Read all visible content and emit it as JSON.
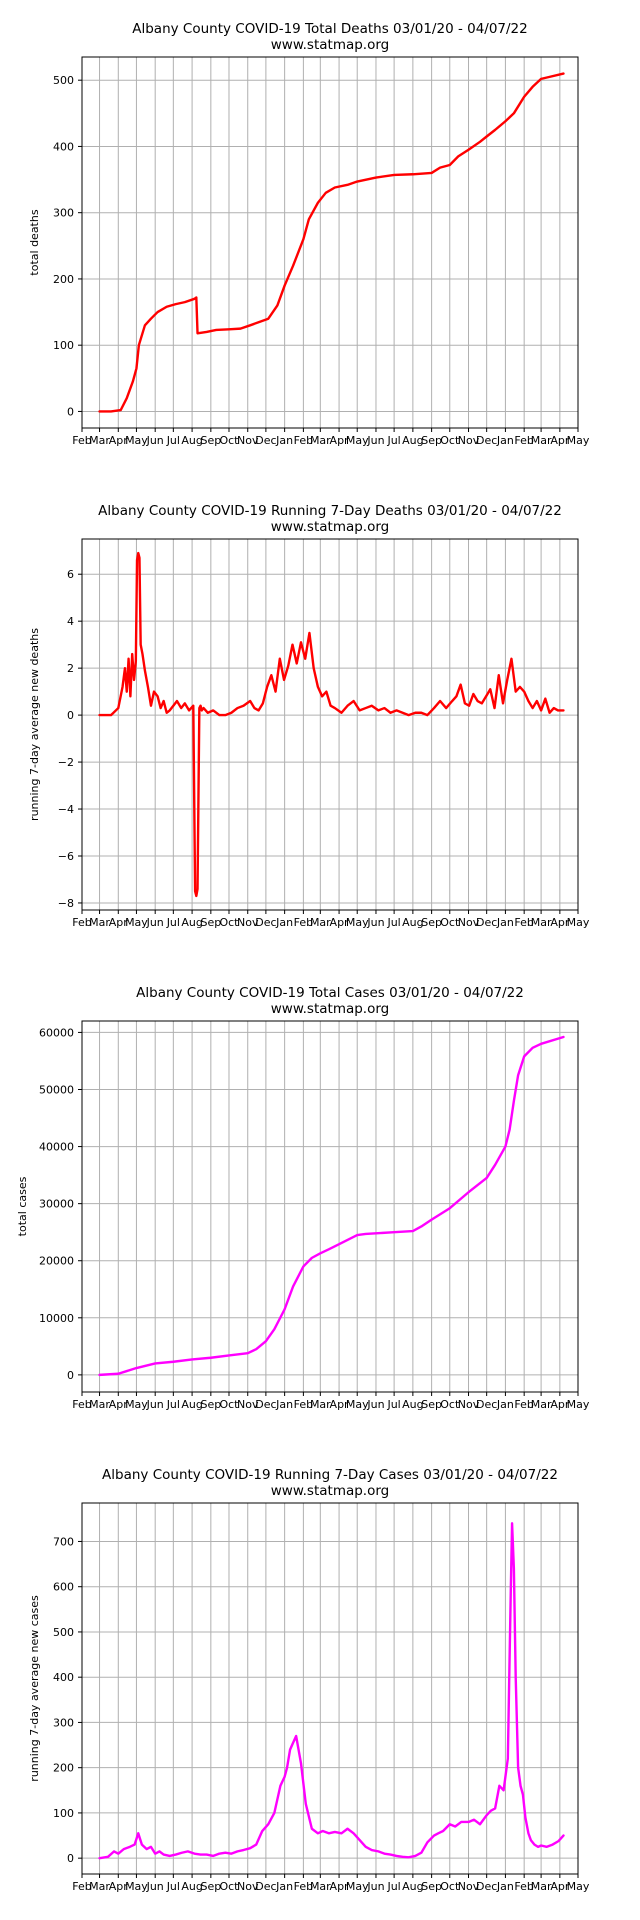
{
  "colors": {
    "deaths": "#ff0000",
    "cases": "#ff00ff",
    "grid": "#b0b0b0",
    "axis": "#000000"
  },
  "x_ticks": [
    "Feb",
    "Mar",
    "Apr",
    "May",
    "Jun",
    "Jul",
    "Aug",
    "Sep",
    "Oct",
    "Nov",
    "Dec",
    "Jan",
    "Feb",
    "Mar",
    "Apr",
    "May",
    "Jun",
    "Jul",
    "Aug",
    "Sep",
    "Oct",
    "Nov",
    "Dec",
    "Jan",
    "Feb",
    "Mar",
    "Apr",
    "May"
  ],
  "chart_data": [
    {
      "type": "line",
      "title": "Albany County COVID-19 Total Deaths 03/01/20 - 04/07/22",
      "subtitle": "www.statmap.org",
      "ylabel": "total deaths",
      "color": "deaths",
      "xlim": [
        "2020-02-01",
        "2022-05-01"
      ],
      "ylim": [
        -25,
        535
      ],
      "yticks": [
        0,
        100,
        200,
        300,
        400,
        500
      ],
      "ytick_labels": [
        "0",
        "100",
        "200",
        "300",
        "400",
        "500"
      ],
      "grid": true,
      "x": [
        "2020-03-01",
        "2020-03-20",
        "2020-04-05",
        "2020-04-15",
        "2020-04-25",
        "2020-05-01",
        "2020-05-05",
        "2020-05-15",
        "2020-05-25",
        "2020-06-05",
        "2020-06-20",
        "2020-07-05",
        "2020-07-20",
        "2020-08-05",
        "2020-08-08",
        "2020-08-10",
        "2020-08-25",
        "2020-09-10",
        "2020-10-01",
        "2020-10-20",
        "2020-11-05",
        "2020-11-20",
        "2020-12-05",
        "2020-12-20",
        "2021-01-01",
        "2021-01-15",
        "2021-02-01",
        "2021-02-10",
        "2021-02-25",
        "2021-03-10",
        "2021-03-25",
        "2021-04-15",
        "2021-05-01",
        "2021-06-01",
        "2021-07-01",
        "2021-08-01",
        "2021-09-01",
        "2021-09-15",
        "2021-10-01",
        "2021-10-15",
        "2021-11-01",
        "2021-11-20",
        "2021-12-01",
        "2021-12-15",
        "2022-01-01",
        "2022-01-15",
        "2022-02-01",
        "2022-02-15",
        "2022-03-01",
        "2022-03-15",
        "2022-04-07"
      ],
      "y": [
        0,
        0,
        2,
        20,
        45,
        65,
        100,
        130,
        140,
        150,
        158,
        162,
        165,
        170,
        172,
        118,
        120,
        123,
        124,
        125,
        130,
        135,
        140,
        160,
        190,
        220,
        260,
        290,
        315,
        330,
        338,
        342,
        347,
        353,
        357,
        358,
        360,
        368,
        372,
        385,
        395,
        407,
        415,
        425,
        438,
        450,
        475,
        490,
        502,
        505,
        510
      ]
    },
    {
      "type": "line",
      "title": "Albany County COVID-19 Running 7-Day Deaths 03/01/20 - 04/07/22",
      "subtitle": "www.statmap.org",
      "ylabel": "running 7-day average new deaths",
      "color": "deaths",
      "xlim": [
        "2020-02-01",
        "2022-05-01"
      ],
      "ylim": [
        -8.3,
        7.5
      ],
      "yticks": [
        -8,
        -6,
        -4,
        -2,
        0,
        2,
        4,
        6
      ],
      "ytick_labels": [
        "−8",
        "−6",
        "−4",
        "−2",
        "0",
        "2",
        "4",
        "6"
      ],
      "grid": true,
      "x": [
        "2020-03-01",
        "2020-03-20",
        "2020-04-01",
        "2020-04-08",
        "2020-04-12",
        "2020-04-15",
        "2020-04-18",
        "2020-04-21",
        "2020-04-24",
        "2020-04-27",
        "2020-04-30",
        "2020-05-02",
        "2020-05-04",
        "2020-05-06",
        "2020-05-08",
        "2020-05-11",
        "2020-05-15",
        "2020-05-20",
        "2020-05-25",
        "2020-05-30",
        "2020-06-05",
        "2020-06-10",
        "2020-06-15",
        "2020-06-20",
        "2020-06-25",
        "2020-07-01",
        "2020-07-07",
        "2020-07-14",
        "2020-07-20",
        "2020-07-27",
        "2020-08-03",
        "2020-08-06",
        "2020-08-08",
        "2020-08-10",
        "2020-08-13",
        "2020-08-15",
        "2020-08-17",
        "2020-08-20",
        "2020-08-27",
        "2020-09-05",
        "2020-09-15",
        "2020-09-25",
        "2020-10-05",
        "2020-10-15",
        "2020-10-25",
        "2020-11-05",
        "2020-11-12",
        "2020-11-19",
        "2020-11-26",
        "2020-12-03",
        "2020-12-10",
        "2020-12-17",
        "2020-12-24",
        "2020-12-31",
        "2021-01-07",
        "2021-01-14",
        "2021-01-21",
        "2021-01-28",
        "2021-02-04",
        "2021-02-11",
        "2021-02-18",
        "2021-02-25",
        "2021-03-04",
        "2021-03-11",
        "2021-03-18",
        "2021-03-25",
        "2021-04-05",
        "2021-04-15",
        "2021-04-25",
        "2021-05-05",
        "2021-05-15",
        "2021-05-25",
        "2021-06-05",
        "2021-06-15",
        "2021-06-25",
        "2021-07-05",
        "2021-07-15",
        "2021-07-25",
        "2021-08-05",
        "2021-08-15",
        "2021-08-25",
        "2021-09-05",
        "2021-09-15",
        "2021-09-25",
        "2021-10-05",
        "2021-10-12",
        "2021-10-19",
        "2021-10-26",
        "2021-11-02",
        "2021-11-09",
        "2021-11-16",
        "2021-11-23",
        "2021-11-30",
        "2021-12-07",
        "2021-12-14",
        "2021-12-21",
        "2021-12-28",
        "2022-01-04",
        "2022-01-11",
        "2022-01-18",
        "2022-01-25",
        "2022-02-01",
        "2022-02-08",
        "2022-02-15",
        "2022-02-22",
        "2022-03-01",
        "2022-03-08",
        "2022-03-15",
        "2022-03-22",
        "2022-03-29",
        "2022-04-07"
      ],
      "y": [
        0,
        0,
        0.3,
        1.2,
        2.0,
        1.0,
        2.4,
        0.8,
        2.6,
        1.5,
        2.3,
        6.6,
        6.9,
        6.7,
        3.0,
        2.6,
        1.9,
        1.2,
        0.4,
        1.0,
        0.8,
        0.3,
        0.6,
        0.1,
        0.2,
        0.4,
        0.6,
        0.3,
        0.5,
        0.2,
        0.4,
        -7.5,
        -7.7,
        -7.4,
        0.3,
        0.4,
        0.2,
        0.3,
        0.1,
        0.2,
        0,
        0,
        0.1,
        0.3,
        0.4,
        0.6,
        0.3,
        0.2,
        0.5,
        1.2,
        1.7,
        1.0,
        2.4,
        1.5,
        2.1,
        3.0,
        2.2,
        3.1,
        2.4,
        3.5,
        2.0,
        1.2,
        0.8,
        1.0,
        0.4,
        0.3,
        0.1,
        0.4,
        0.6,
        0.2,
        0.3,
        0.4,
        0.2,
        0.3,
        0.1,
        0.2,
        0.1,
        0,
        0.1,
        0.1,
        0,
        0.3,
        0.6,
        0.3,
        0.6,
        0.8,
        1.3,
        0.5,
        0.4,
        0.9,
        0.6,
        0.5,
        0.8,
        1.1,
        0.3,
        1.7,
        0.5,
        1.5,
        2.4,
        1.0,
        1.2,
        1.0,
        0.6,
        0.3,
        0.6,
        0.2,
        0.7,
        0.1,
        0.3,
        0.2,
        0.2
      ]
    },
    {
      "type": "line",
      "title": "Albany County COVID-19 Total Cases 03/01/20 - 04/07/22",
      "subtitle": "www.statmap.org",
      "ylabel": "total cases",
      "color": "cases",
      "xlim": [
        "2020-02-01",
        "2022-05-01"
      ],
      "ylim": [
        -3000,
        62000
      ],
      "yticks": [
        0,
        10000,
        20000,
        30000,
        40000,
        50000,
        60000
      ],
      "ytick_labels": [
        "0",
        "10000",
        "20000",
        "30000",
        "40000",
        "50000",
        "60000"
      ],
      "grid": true,
      "x": [
        "2020-03-01",
        "2020-04-01",
        "2020-05-01",
        "2020-06-01",
        "2020-07-01",
        "2020-08-01",
        "2020-09-01",
        "2020-10-01",
        "2020-11-01",
        "2020-11-15",
        "2020-12-01",
        "2020-12-15",
        "2021-01-01",
        "2021-01-15",
        "2021-02-01",
        "2021-02-15",
        "2021-03-01",
        "2021-03-15",
        "2021-04-01",
        "2021-05-01",
        "2021-05-15",
        "2021-06-01",
        "2021-07-01",
        "2021-08-01",
        "2021-08-15",
        "2021-09-01",
        "2021-10-01",
        "2021-11-01",
        "2021-12-01",
        "2021-12-15",
        "2022-01-01",
        "2022-01-08",
        "2022-01-15",
        "2022-01-22",
        "2022-02-01",
        "2022-02-15",
        "2022-03-01",
        "2022-04-07"
      ],
      "y": [
        0,
        200,
        1200,
        2000,
        2300,
        2700,
        3000,
        3400,
        3800,
        4500,
        5900,
        8000,
        11500,
        15500,
        19000,
        20500,
        21300,
        22000,
        22900,
        24500,
        24700,
        24800,
        25000,
        25200,
        26000,
        27200,
        29200,
        32000,
        34500,
        36800,
        40000,
        43000,
        48000,
        52500,
        55800,
        57300,
        58000,
        59200
      ]
    },
    {
      "type": "line",
      "title": "Albany County COVID-19 Running 7-Day Cases 03/01/20 - 04/07/22",
      "subtitle": "www.statmap.org",
      "ylabel": "running 7-day average new cases",
      "color": "cases",
      "xlim": [
        "2020-02-01",
        "2022-05-01"
      ],
      "ylim": [
        -35,
        785
      ],
      "yticks": [
        0,
        100,
        200,
        300,
        400,
        500,
        600,
        700
      ],
      "ytick_labels": [
        "0",
        "100",
        "200",
        "300",
        "400",
        "500",
        "600",
        "700"
      ],
      "grid": true,
      "x": [
        "2020-03-01",
        "2020-03-15",
        "2020-03-25",
        "2020-04-01",
        "2020-04-10",
        "2020-04-20",
        "2020-04-28",
        "2020-05-04",
        "2020-05-10",
        "2020-05-18",
        "2020-05-25",
        "2020-06-01",
        "2020-06-08",
        "2020-06-15",
        "2020-06-25",
        "2020-07-05",
        "2020-07-15",
        "2020-07-25",
        "2020-08-05",
        "2020-08-15",
        "2020-08-25",
        "2020-09-05",
        "2020-09-15",
        "2020-09-25",
        "2020-10-05",
        "2020-10-15",
        "2020-10-25",
        "2020-11-05",
        "2020-11-15",
        "2020-11-25",
        "2020-12-05",
        "2020-12-15",
        "2020-12-25",
        "2021-01-01",
        "2021-01-05",
        "2021-01-10",
        "2021-01-15",
        "2021-01-20",
        "2021-01-28",
        "2021-02-05",
        "2021-02-15",
        "2021-02-25",
        "2021-03-05",
        "2021-03-15",
        "2021-03-25",
        "2021-04-05",
        "2021-04-15",
        "2021-04-25",
        "2021-05-05",
        "2021-05-15",
        "2021-05-25",
        "2021-06-05",
        "2021-06-15",
        "2021-06-25",
        "2021-07-05",
        "2021-07-15",
        "2021-07-25",
        "2021-08-05",
        "2021-08-15",
        "2021-08-25",
        "2021-09-05",
        "2021-09-12",
        "2021-09-20",
        "2021-10-01",
        "2021-10-10",
        "2021-10-20",
        "2021-11-01",
        "2021-11-10",
        "2021-11-20",
        "2021-12-01",
        "2021-12-08",
        "2021-12-15",
        "2021-12-22",
        "2021-12-29",
        "2022-01-02",
        "2022-01-05",
        "2022-01-08",
        "2022-01-10",
        "2022-01-12",
        "2022-01-15",
        "2022-01-18",
        "2022-01-22",
        "2022-01-26",
        "2022-01-30",
        "2022-02-03",
        "2022-02-08",
        "2022-02-12",
        "2022-02-18",
        "2022-02-24",
        "2022-03-01",
        "2022-03-10",
        "2022-03-20",
        "2022-03-30",
        "2022-04-07"
      ],
      "y": [
        0,
        3,
        15,
        10,
        20,
        25,
        30,
        55,
        30,
        20,
        25,
        10,
        15,
        8,
        5,
        8,
        12,
        15,
        10,
        8,
        8,
        5,
        10,
        12,
        10,
        15,
        18,
        22,
        30,
        60,
        75,
        100,
        160,
        180,
        200,
        240,
        255,
        270,
        210,
        120,
        65,
        55,
        60,
        55,
        58,
        55,
        65,
        55,
        40,
        25,
        18,
        15,
        10,
        8,
        5,
        3,
        2,
        5,
        12,
        35,
        50,
        55,
        60,
        75,
        70,
        80,
        80,
        85,
        75,
        95,
        105,
        110,
        160,
        150,
        190,
        220,
        450,
        600,
        740,
        640,
        400,
        200,
        160,
        140,
        90,
        55,
        40,
        30,
        25,
        28,
        25,
        30,
        38,
        50
      ]
    }
  ]
}
